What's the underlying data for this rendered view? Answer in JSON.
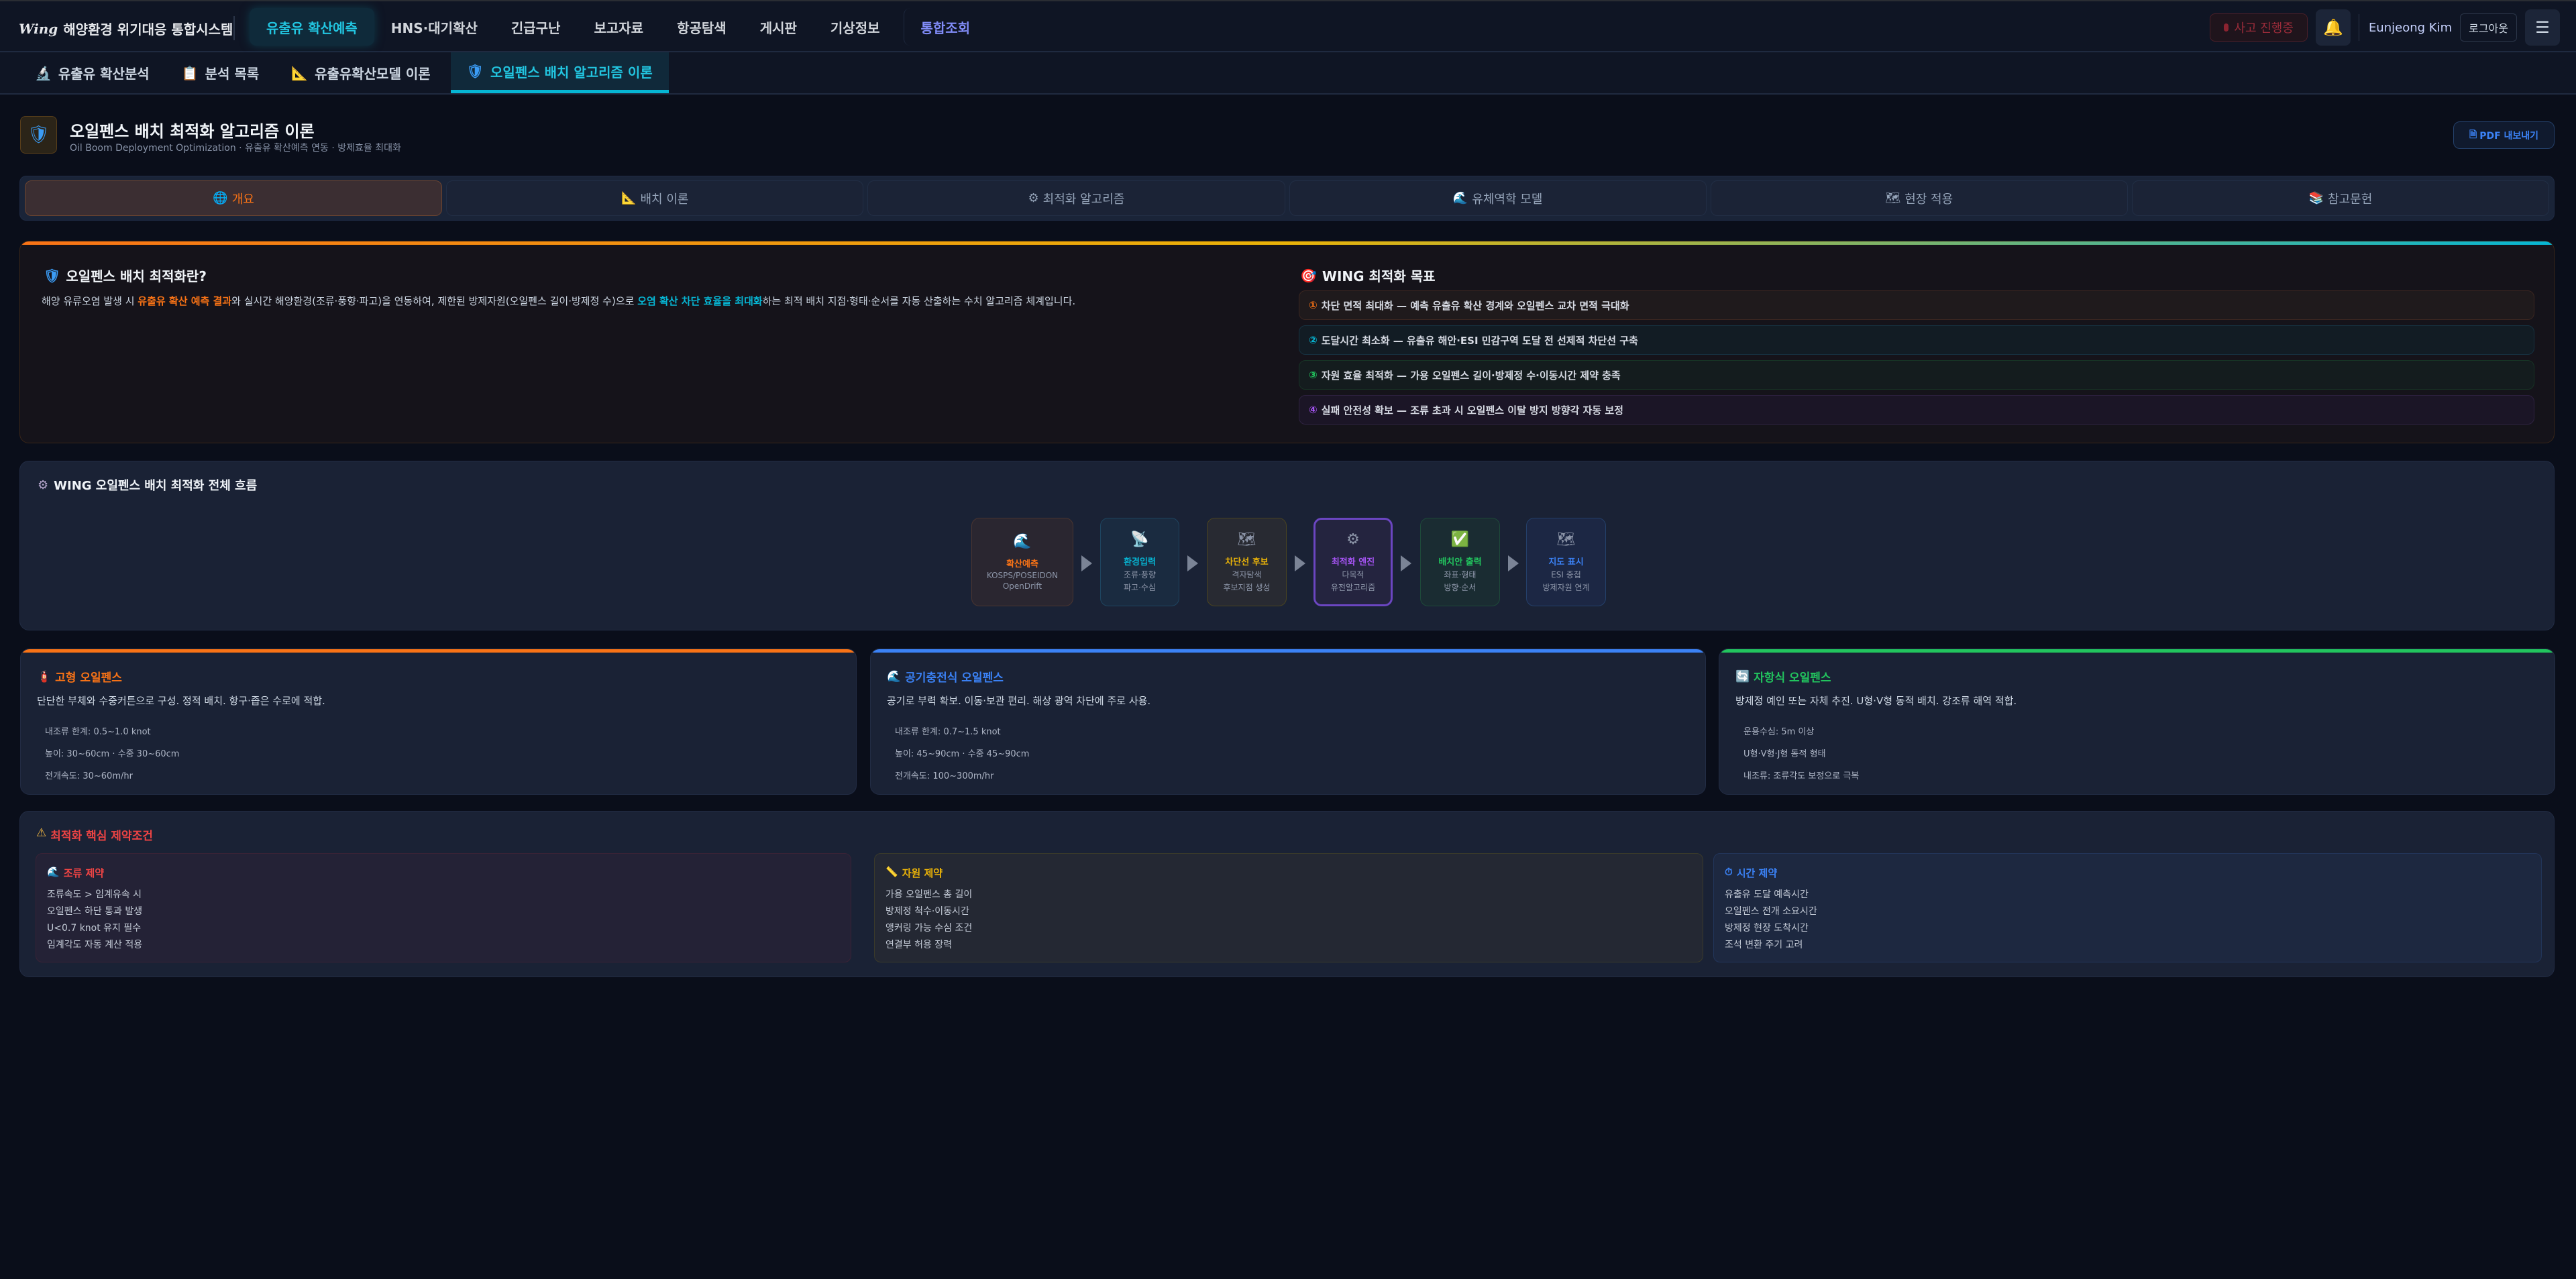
{
  "topbar": {
    "logo_mark": "Wing",
    "app_title": "해양환경 위기대응 통합시스템",
    "nav": [
      "유출유 확산예측",
      "HNS·대기확산",
      "긴급구난",
      "보고자료",
      "항공탐색",
      "게시판",
      "기상정보",
      "통합조회"
    ],
    "incident_label": "사고 진행중",
    "user_name": "Eunjeong Kim",
    "logout_label": "로그아웃"
  },
  "subtabs": [
    {
      "icon": "🔬",
      "label": "유출유 확산분석"
    },
    {
      "icon": "📋",
      "label": "분석 목록"
    },
    {
      "icon": "📐",
      "label": "유출유확산모델 이론"
    },
    {
      "icon": "🛡",
      "label": "오일펜스 배치 알고리즘 이론"
    }
  ],
  "page": {
    "title": "오일펜스 배치 최적화 알고리즘 이론",
    "subtitle": "Oil Boom Deployment Optimization · 유출유 확산예측 연동 · 방제효율 최대화",
    "pdf_label": "PDF 내보내기"
  },
  "tabs": [
    {
      "icon": "🌐",
      "label": "개요"
    },
    {
      "icon": "📐",
      "label": "배치 이론"
    },
    {
      "icon": "⚙",
      "label": "최적화 알고리즘"
    },
    {
      "icon": "🌊",
      "label": "유체역학 모델"
    },
    {
      "icon": "🗺",
      "label": "현장 적용"
    },
    {
      "icon": "📚",
      "label": "참고문헌"
    }
  ],
  "overview": {
    "title": "오일펜스 배치 최적화란?",
    "para_1": "해양 유류오염 발생 시 ",
    "para_hl1": "유출유 확산 예측 결과",
    "para_2": "와 실시간 해양환경(조류·풍향·파고)을 연동하여, 제한된 방제자원(오일펜스 길이·방제정 수)으로 ",
    "para_hl2": "오염 확산 차단 효율을 최대화",
    "para_3": "하는 최적 배치 지점·형태·순서를 자동 산출하는 수치 알고리즘 체계입니다.",
    "goals_title": "WING 최적화 목표",
    "goals": [
      {
        "num": "①",
        "text": "차단 면적 최대화 — 예측 유출유 확산 경계와 오일펜스 교차 면적 극대화",
        "color": "#f97316"
      },
      {
        "num": "②",
        "text": "도달시간 최소화 — 유출유 해안·ESI 민감구역 도달 전 선제적 차단선 구축",
        "color": "#06b6d4"
      },
      {
        "num": "③",
        "text": "자원 효율 최적화 — 가용 오일펜스 길이·방제정 수·이동시간 제약 충족",
        "color": "#22c55e"
      },
      {
        "num": "④",
        "text": "실패 안전성 확보 — 조류 초과 시 오일펜스 이탈 방지 방향각 자동 보정",
        "color": "#a855f7"
      }
    ]
  },
  "flow": {
    "title": "WING 오일펜스 배치 최적화 전체 흐름",
    "steps": [
      {
        "icon": "🌊",
        "title": "확산예측",
        "lines": [
          "KOSPS/POSEIDON",
          "OpenDrift"
        ],
        "color": "#f97316"
      },
      {
        "icon": "📡",
        "title": "환경입력",
        "lines": [
          "조류·풍향",
          "파고·수심"
        ],
        "color": "#06b6d4"
      },
      {
        "icon": "🗺",
        "title": "차단선 후보",
        "lines": [
          "격자탐색",
          "후보지점 생성"
        ],
        "color": "#eab308"
      },
      {
        "icon": "⚙",
        "title": "최적화 엔진",
        "lines": [
          "다목적",
          "유전알고리즘"
        ],
        "color": "#a855f7"
      },
      {
        "icon": "✅",
        "title": "배치안 출력",
        "lines": [
          "좌표·형태",
          "방향·순서"
        ],
        "color": "#22c55e"
      },
      {
        "icon": "🗺",
        "title": "지도 표시",
        "lines": [
          "ESI 중첩",
          "방제자원 연계"
        ],
        "color": "#3b82f6"
      }
    ]
  },
  "booms": [
    {
      "icon": "🧯",
      "title": "고형 오일펜스",
      "color": "#f97316",
      "desc": "단단한 부체와 수중커튼으로 구성. 정적 배치. 항구·좁은 수로에 적합.",
      "specs": [
        "내조류 한계: 0.5~1.0 knot",
        "높이: 30~60cm · 수중 30~60cm",
        "전개속도: 30~60m/hr"
      ]
    },
    {
      "icon": "🌊",
      "title": "공기충전식 오일펜스",
      "color": "#3b82f6",
      "desc": "공기로 부력 확보. 이동·보관 편리. 해상 광역 차단에 주로 사용.",
      "specs": [
        "내조류 한계: 0.7~1.5 knot",
        "높이: 45~90cm · 수중 45~90cm",
        "전개속도: 100~300m/hr"
      ]
    },
    {
      "icon": "🔄",
      "title": "자항식 오일펜스",
      "color": "#22c55e",
      "desc": "방제정 예인 또는 자체 추진. U형·V형 동적 배치. 강조류 해역 적합.",
      "specs": [
        "운용수심: 5m 이상",
        "U형·V형·J형 동적 형태",
        "내조류: 조류각도 보정으로 극복"
      ]
    }
  ],
  "constraints": {
    "title": "최적화 핵심 제약조건",
    "groups": [
      {
        "icon": "🌊",
        "title": "조류 제약",
        "color": "#ef4444",
        "items": [
          "조류속도 > 임계유속 시",
          "오일펜스 하단 통과 발생",
          "U<0.7 knot 유지 필수",
          "임계각도 자동 계산 적용"
        ]
      },
      {
        "icon": "📏",
        "title": "자원 제약",
        "color": "#eab308",
        "items": [
          "가용 오일펜스 총 길이",
          "방제정 척수·이동시간",
          "앵커링 가능 수심 조건",
          "연결부 허용 장력"
        ]
      },
      {
        "icon": "⏱",
        "title": "시간 제약",
        "color": "#3b82f6",
        "items": [
          "유출유 도달 예측시간",
          "오일펜스 전개 소요시간",
          "방제정 현장 도착시간",
          "조석 변환 주기 고려"
        ]
      }
    ]
  }
}
